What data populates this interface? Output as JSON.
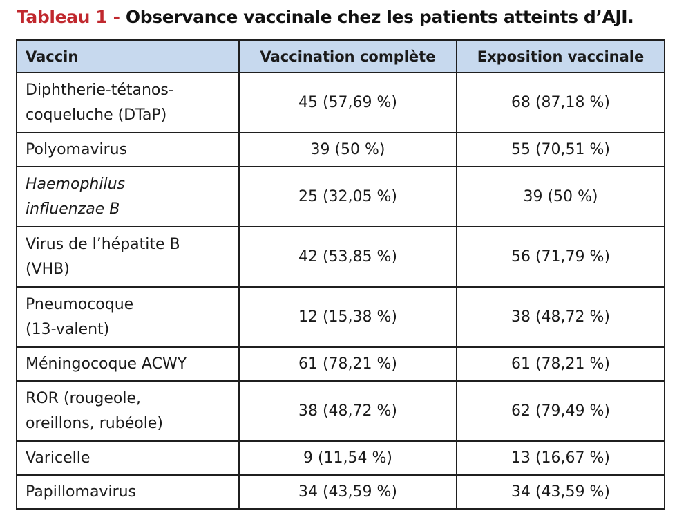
{
  "title": {
    "label": "Tableau 1 -",
    "text": "Observance vaccinale chez les patients atteints d’AJI."
  },
  "table": {
    "headers": [
      "Vaccin",
      "Vaccination complète",
      "Exposition vaccinale"
    ],
    "rows": [
      {
        "vaccin_line1": "Diphtherie-tétanos-",
        "vaccin_line2": "coqueluche (DTaP)",
        "complete": "45 (57,69 %)",
        "exposition": "68 (87,18 %)"
      },
      {
        "vaccin_line1": "Polyomavirus",
        "complete": "39 (50 %)",
        "exposition": "55 (70,51 %)"
      },
      {
        "vaccin_line1": "Haemophilus",
        "vaccin_line2": "influenzae B",
        "complete": "25 (32,05 %)",
        "exposition": "39 (50 %)"
      },
      {
        "vaccin_line1": "Virus de l’hépatite B",
        "vaccin_line2": "(VHB)",
        "complete": "42 (53,85 %)",
        "exposition": "56 (71,79 %)"
      },
      {
        "vaccin_line1": "Pneumocoque",
        "vaccin_line2": "(13-valent)",
        "complete": "12 (15,38 %)",
        "exposition": "38 (48,72 %)"
      },
      {
        "vaccin_line1": "Méningocoque ACWY",
        "complete": "61 (78,21 %)",
        "exposition": "61 (78,21 %)"
      },
      {
        "vaccin_line1": "ROR (rougeole,",
        "vaccin_line2": "oreillons, rubéole)",
        "complete": "38 (48,72 %)",
        "exposition": "62 (79,49 %)"
      },
      {
        "vaccin_line1": "Varicelle",
        "complete": "9 (11,54 %)",
        "exposition": "13 (16,67 %)"
      },
      {
        "vaccin_line1": "Papillomavirus",
        "complete": "34 (43,59 %)",
        "exposition": "34 (43,59 %)"
      }
    ]
  },
  "colors": {
    "title_label": "#c0282e",
    "header_bg": "#c7d9ee",
    "border": "#1f1f1f"
  }
}
